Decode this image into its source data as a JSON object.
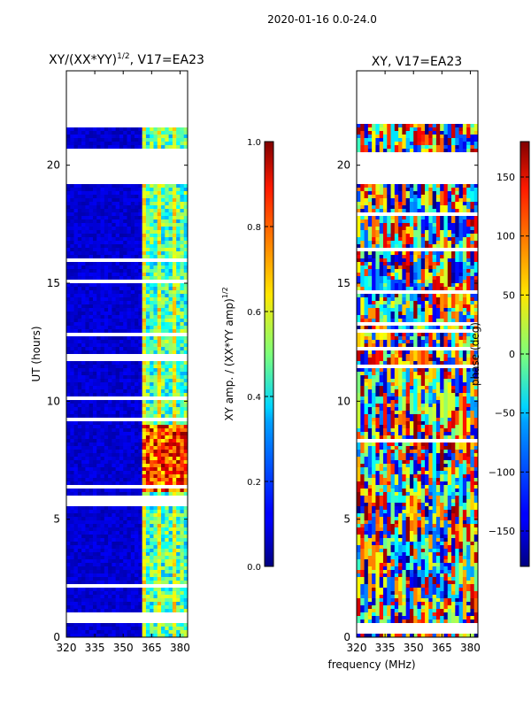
{
  "suptitle": "2020-01-16 0.0-24.0",
  "shared_xlabel": "frequency (MHz)",
  "chart_data": [
    {
      "type": "heatmap",
      "title_base": "XY/(XX*YY)",
      "title_exp": "1/2",
      "title_suffix": ", V17=EA23",
      "ylabel": "UT (hours)",
      "x_ticks": [
        320,
        335,
        350,
        365,
        380
      ],
      "y_ticks": [
        0,
        5,
        10,
        15,
        20
      ],
      "x_range": [
        320,
        384
      ],
      "y_range": [
        0,
        24
      ],
      "colorbar": {
        "label_base": "XY amp. / (XX*YY amp)",
        "label_exp": "1/2",
        "range": [
          0.0,
          1.0
        ],
        "ticks": [
          "0.0",
          "0.2",
          "0.4",
          "0.6",
          "0.8",
          "1.0"
        ],
        "tick_values": [
          0.0,
          0.2,
          0.4,
          0.6,
          0.8,
          1.0
        ]
      },
      "bright_band_mhz": [
        361,
        384
      ],
      "enhanced_ut_hours": [
        6.2,
        9.0
      ],
      "data_gaps_ut_hours": [
        [
          0.6,
          1.0
        ],
        [
          5.6,
          6.0
        ],
        [
          19.2,
          20.5
        ],
        [
          21.8,
          24.0
        ]
      ]
    },
    {
      "type": "heatmap",
      "title": "XY, V17=EA23",
      "x_ticks": [
        320,
        335,
        350,
        365,
        380
      ],
      "y_ticks": [
        0,
        5,
        10,
        15,
        20
      ],
      "x_range": [
        320,
        384
      ],
      "y_range": [
        0,
        24
      ],
      "colorbar": {
        "label": "phase (deg)",
        "range": [
          -180,
          180
        ],
        "ticks": [
          "150",
          "100",
          "50",
          "0",
          "−50",
          "−100",
          "−150"
        ],
        "tick_values": [
          150,
          100,
          50,
          0,
          -50,
          -100,
          -150
        ]
      },
      "data_gaps_ut_hours": [
        [
          0.2,
          0.5
        ],
        [
          19.2,
          20.5
        ],
        [
          21.8,
          24.0
        ]
      ]
    }
  ]
}
